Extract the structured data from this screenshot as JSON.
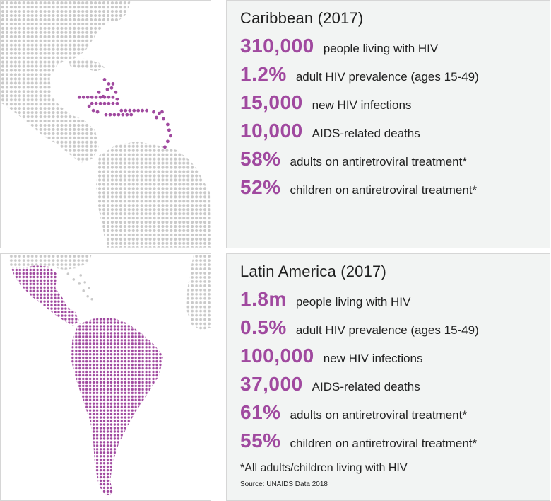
{
  "colors": {
    "accent": "#a0499f",
    "land_grey": "#c9c9c9",
    "panel_bg": "#f2f4f3",
    "border": "#d6d6d6"
  },
  "caribbean": {
    "title": "Caribbean (2017)",
    "stats": [
      {
        "value": "310,000",
        "label": "people living with HIV"
      },
      {
        "value": "1.2%",
        "label": "adult HIV prevalence (ages 15-49)"
      },
      {
        "value": "15,000",
        "label": "new HIV infections"
      },
      {
        "value": "10,000",
        "label": "AIDS-related deaths"
      },
      {
        "value": "58%",
        "label": "adults on antiretroviral treatment*"
      },
      {
        "value": "52%",
        "label": "children on antiretroviral treatment*"
      }
    ]
  },
  "latin_america": {
    "title": "Latin America (2017)",
    "stats": [
      {
        "value": "1.8m",
        "label": "people living with HIV"
      },
      {
        "value": "0.5%",
        "label": "adult HIV prevalence (ages 15-49)"
      },
      {
        "value": "100,000",
        "label": "new HIV infections"
      },
      {
        "value": "37,000",
        "label": "AIDS-related deaths"
      },
      {
        "value": "61%",
        "label": "adults on antiretroviral treatment*"
      },
      {
        "value": "55%",
        "label": "children on antiretroviral treatment*"
      }
    ],
    "footnote": "*All adults/children living with HIV",
    "source": "Source: UNAIDS Data 2018"
  }
}
